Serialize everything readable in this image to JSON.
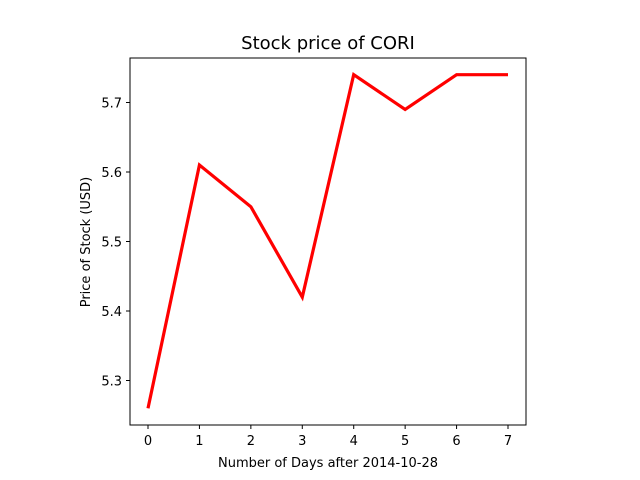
{
  "chart_data": {
    "type": "line",
    "title": "Stock price of CORI",
    "xlabel": "Number of Days after 2014-10-28",
    "ylabel": "Price of Stock (USD)",
    "x": [
      0,
      1,
      2,
      3,
      4,
      5,
      6,
      7
    ],
    "series": [
      {
        "values": [
          5.26,
          5.61,
          5.55,
          5.42,
          5.74,
          5.69,
          5.74,
          5.74
        ],
        "color": "#ff0000"
      }
    ],
    "xticks": [
      0,
      1,
      2,
      3,
      4,
      5,
      6,
      7
    ],
    "yticks": [
      5.3,
      5.4,
      5.5,
      5.6,
      5.7
    ],
    "ytick_labels": [
      "5.3",
      "5.4",
      "5.5",
      "5.6",
      "5.7"
    ],
    "xlim": [
      -0.35,
      7.35
    ],
    "ylim": [
      5.236,
      5.764
    ],
    "grid": false,
    "legend": false
  }
}
